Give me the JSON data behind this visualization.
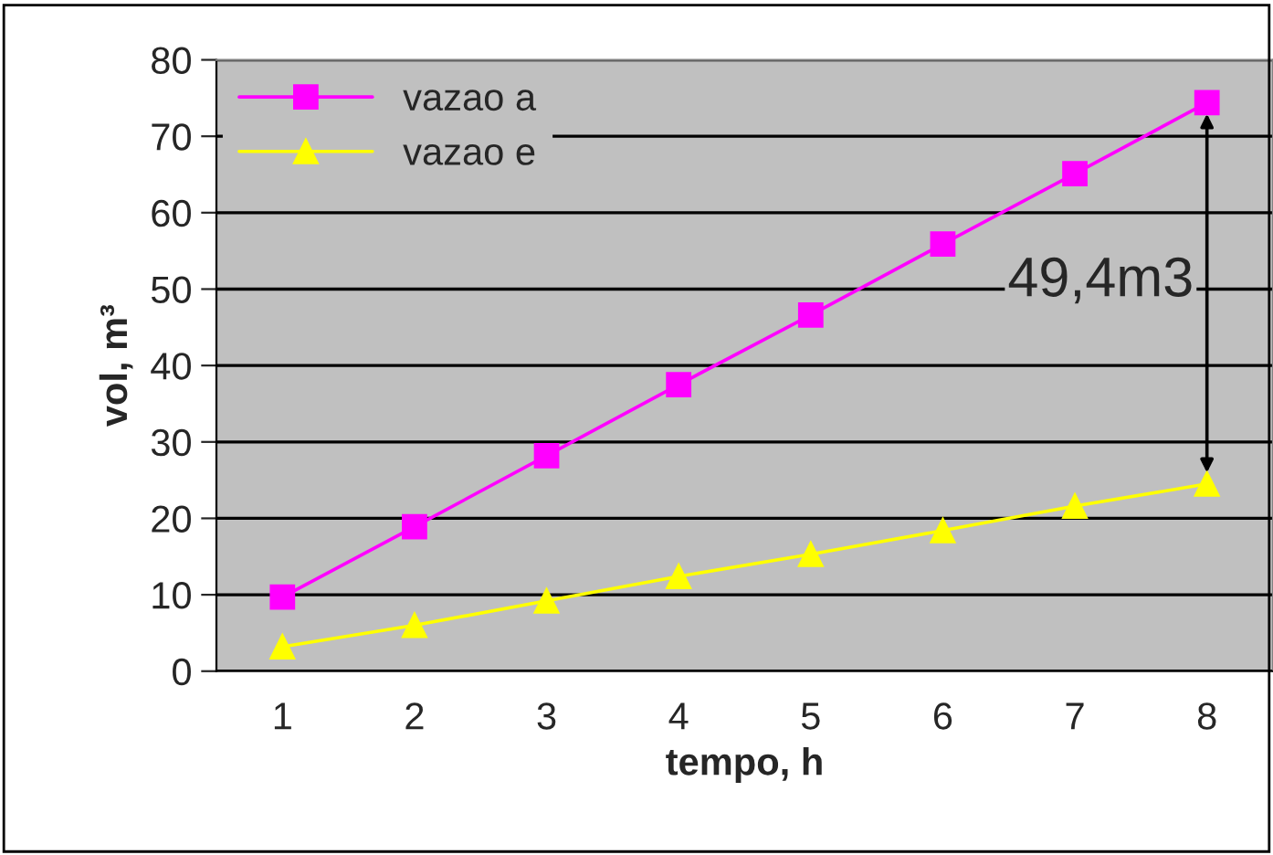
{
  "chart_data": {
    "type": "line",
    "xlabel": "tempo, h",
    "ylabel": "vol, m³",
    "categories": [
      "1",
      "2",
      "3",
      "4",
      "5",
      "6",
      "7",
      "8"
    ],
    "series": [
      {
        "name": "vazao a",
        "color": "#ff00ff",
        "marker": "square",
        "values": [
          9.7,
          18.9,
          28.2,
          37.5,
          46.6,
          55.9,
          65.1,
          74.4
        ]
      },
      {
        "name": "vazao e",
        "color": "#ffff00",
        "marker": "triangle",
        "values": [
          3.2,
          6.0,
          9.2,
          12.4,
          15.3,
          18.4,
          21.6,
          24.5
        ]
      }
    ],
    "ylim": [
      0,
      80
    ],
    "yticks": [
      0,
      10,
      20,
      30,
      40,
      50,
      60,
      70,
      80
    ],
    "grid": "y",
    "legend": "top left",
    "line_style": "solid",
    "annotations": [
      "49,4m3"
    ]
  }
}
